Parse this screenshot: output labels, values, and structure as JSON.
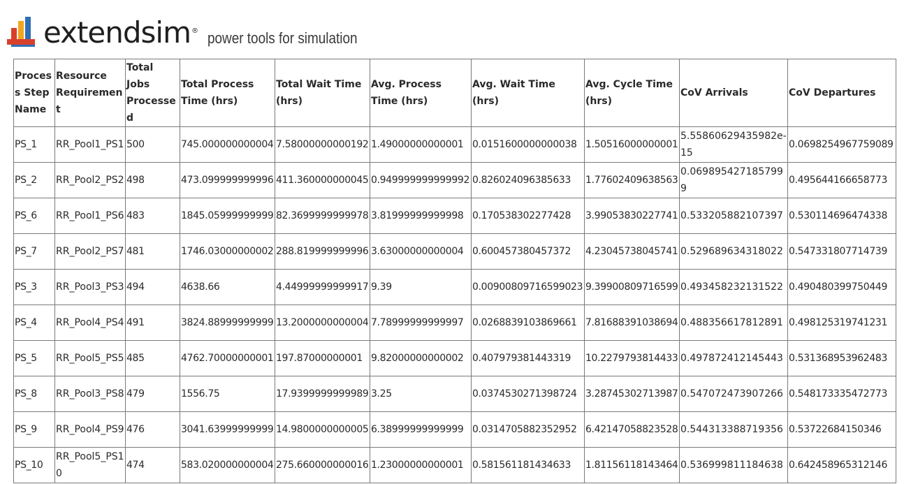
{
  "header": {
    "brand_name": "extendsim",
    "brand_reg": "®",
    "tagline": "power tools for simulation",
    "logo_icon": "extendsim-stacked-bars-logo",
    "colors": {
      "logo_red": "#d9402b",
      "logo_orange": "#f2a51f",
      "logo_blue": "#2f6fb5"
    }
  },
  "table": {
    "columns": [
      "Process Step Name",
      "Resource Requirement",
      "Total Jobs Processed",
      "Total Process Time (hrs)",
      "Total Wait Time (hrs)",
      "Avg. Process Time (hrs)",
      "Avg. Wait Time (hrs)",
      "Avg. Cycle Time (hrs)",
      "CoV Arrivals",
      "CoV Departures"
    ],
    "rows": [
      [
        "PS_1",
        "RR_Pool1_PS1",
        "500",
        "745.000000000004",
        "7.58000000000192",
        "1.49000000000001",
        "0.0151600000000038",
        "1.50516000000001",
        "5.55860629435982e-15",
        "0.0698254967759089"
      ],
      [
        "PS_2",
        "RR_Pool2_PS2",
        "498",
        "473.099999999996",
        "411.360000000045",
        "0.949999999999992",
        "0.826024096385633",
        "1.77602409638563",
        "0.0698954271857999",
        "0.495644166658773"
      ],
      [
        "PS_6",
        "RR_Pool1_PS6",
        "483",
        "1845.05999999999",
        "82.3699999999978",
        "3.81999999999998",
        "0.170538302277428",
        "3.99053830227741",
        "0.533205882107397",
        "0.530114696474338"
      ],
      [
        "PS_7",
        "RR_Pool2_PS7",
        "481",
        "1746.03000000002",
        "288.819999999996",
        "3.63000000000004",
        "0.600457380457372",
        "4.23045738045741",
        "0.529689634318022",
        "0.547331807714739"
      ],
      [
        "PS_3",
        "RR_Pool3_PS3",
        "494",
        "4638.66",
        "4.44999999999917",
        "9.39",
        "0.00900809716599023",
        "9.39900809716599",
        "0.493458232131522",
        "0.490480399750449"
      ],
      [
        "PS_4",
        "RR_Pool4_PS4",
        "491",
        "3824.88999999999",
        "13.2000000000004",
        "7.78999999999997",
        "0.0268839103869661",
        "7.81688391038694",
        "0.488356617812891",
        "0.498125319741231"
      ],
      [
        "PS_5",
        "RR_Pool5_PS5",
        "485",
        "4762.70000000001",
        "197.87000000001",
        "9.82000000000002",
        "0.407979381443319",
        "10.2279793814433",
        "0.497872412145443",
        "0.531368953962483"
      ],
      [
        "PS_8",
        "RR_Pool3_PS8",
        "479",
        "1556.75",
        "17.9399999999989",
        "3.25",
        "0.0374530271398724",
        "3.28745302713987",
        "0.547072473907266",
        "0.548173335472773"
      ],
      [
        "PS_9",
        "RR_Pool4_PS9",
        "476",
        "3041.63999999999",
        "14.9800000000005",
        "6.38999999999999",
        "0.0314705882352952",
        "6.42147058823528",
        "0.544313388719356",
        "0.53722684150346"
      ],
      [
        "PS_10",
        "RR_Pool5_PS10",
        "474",
        "583.020000000004",
        "275.660000000016",
        "1.23000000000001",
        "0.581561181434633",
        "1.81156118143464",
        "0.536999811184638",
        "0.642458965312146"
      ]
    ]
  }
}
